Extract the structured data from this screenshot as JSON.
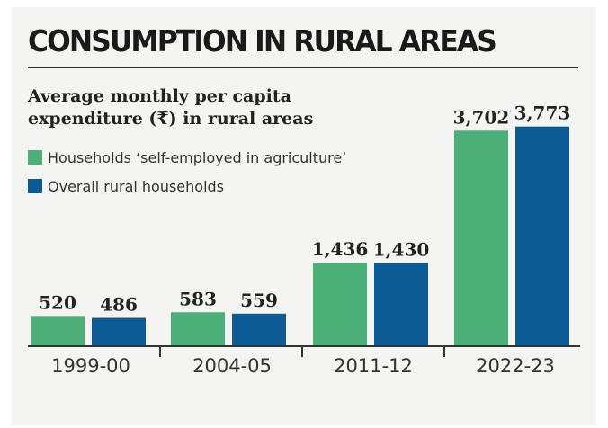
{
  "chart_data": {
    "type": "bar",
    "title": "CONSUMPTION IN RURAL AREAS",
    "subtitle": "Average monthly per capita expenditure (₹) in rural areas",
    "categories": [
      "1999-00",
      "2004-05",
      "2011-12",
      "2022-23"
    ],
    "series": [
      {
        "name": "Households ‘self-employed in agriculture’",
        "color": "#4caf78",
        "values": [
          520,
          583,
          1436,
          3702
        ],
        "labels": [
          "520",
          "583",
          "1,436",
          "3,702"
        ]
      },
      {
        "name": "Overall rural households",
        "color": "#0b5a94",
        "values": [
          486,
          559,
          1430,
          3773
        ],
        "labels": [
          "486",
          "559",
          "1,430",
          "3,773"
        ]
      }
    ],
    "ylim": [
      0,
      4000
    ],
    "grid": false,
    "legend": "top-left"
  }
}
